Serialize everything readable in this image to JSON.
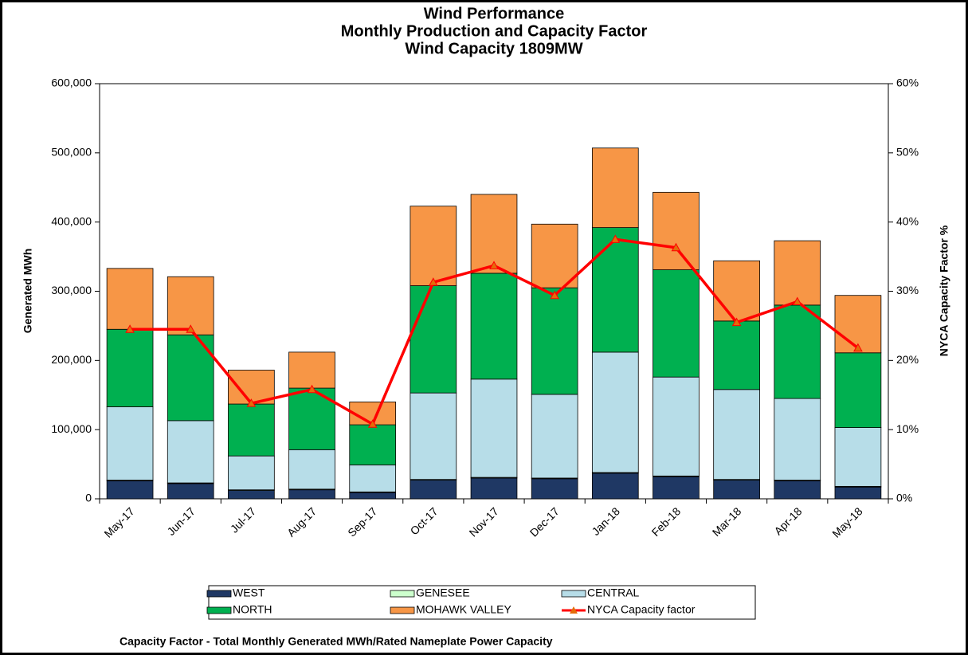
{
  "chart_data": {
    "type": "bar",
    "title": [
      "Wind Performance",
      "Monthly Production and Capacity Factor",
      "Wind Capacity 1809MW"
    ],
    "y_label": "Generated MWh",
    "y2_label": "NYCA Capacity Factor %",
    "note": "Capacity Factor - Total Monthly Generated MWh/Rated Nameplate Power Capacity",
    "stacked": true,
    "legend": "bottom",
    "categories": [
      "May-17",
      "Jun-17",
      "Jul-17",
      "Aug-17",
      "Sep-17",
      "Oct-17",
      "Nov-17",
      "Dec-17",
      "Jan-18",
      "Feb-18",
      "Mar-18",
      "Apr-18",
      "May-18"
    ],
    "series": [
      {
        "name": "WEST",
        "color": "#1f3864",
        "values": [
          26000,
          22000,
          12000,
          13000,
          9000,
          27000,
          30000,
          29000,
          37000,
          32000,
          27000,
          26000,
          17000
        ]
      },
      {
        "name": "GENESEE",
        "color": "#ccffcc",
        "values": [
          1000,
          1000,
          1000,
          1000,
          1000,
          1000,
          1000,
          1000,
          1000,
          1000,
          1000,
          1000,
          1000
        ]
      },
      {
        "name": "CENTRAL",
        "color": "#b7dde8",
        "values": [
          106000,
          90000,
          49000,
          57000,
          39000,
          125000,
          142000,
          121000,
          174000,
          143000,
          130000,
          118000,
          85000
        ]
      },
      {
        "name": "NORTH",
        "color": "#00b050",
        "values": [
          112000,
          124000,
          75000,
          89000,
          58000,
          155000,
          153000,
          154000,
          180000,
          155000,
          99000,
          135000,
          108000
        ]
      },
      {
        "name": "MOHAWK VALLEY",
        "color": "#f79646",
        "values": [
          88000,
          84000,
          49000,
          52000,
          33000,
          115000,
          114000,
          92000,
          115000,
          112000,
          87000,
          93000,
          83000
        ]
      },
      {
        "name": "NYCA Capacity factor",
        "color": "#ff0000",
        "type": "line",
        "axis": "y2",
        "values": [
          24.5,
          24.5,
          13.8,
          15.8,
          10.8,
          31.3,
          33.7,
          29.4,
          37.5,
          36.3,
          25.5,
          28.5,
          21.8
        ]
      }
    ],
    "ylim": [
      0,
      600000
    ],
    "yticks": [
      0,
      {
        "value": 100000,
        "label": "100,000"
      },
      {
        "value": 200000,
        "label": "200,000"
      },
      {
        "value": 300000,
        "label": "300,000"
      },
      {
        "value": 400000,
        "label": "400,000"
      },
      {
        "value": 500000,
        "label": "500,000"
      },
      {
        "value": 600000,
        "label": "600,000"
      }
    ],
    "y2lim": [
      0,
      60
    ],
    "y2ticks": [
      {
        "value": 0,
        "label": "0%"
      },
      {
        "value": 10,
        "label": "10%"
      },
      {
        "value": 20,
        "label": "20%"
      },
      {
        "value": 30,
        "label": "30%"
      },
      {
        "value": 40,
        "label": "40%"
      },
      {
        "value": 50,
        "label": "50%"
      },
      {
        "value": 60,
        "label": "60%"
      }
    ],
    "grid": false
  }
}
